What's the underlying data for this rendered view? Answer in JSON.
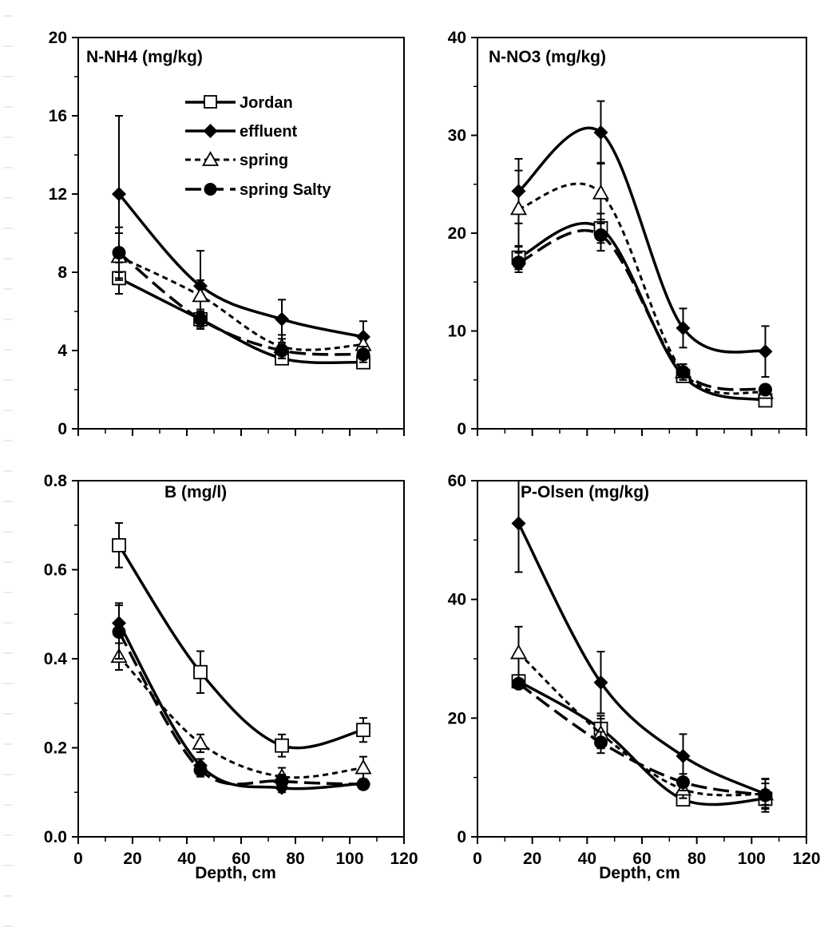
{
  "chart_data": [
    {
      "type": "line",
      "title": "N-NH4 (mg/kg)",
      "xlabel": "",
      "ylabel": "",
      "xlim": [
        0,
        120
      ],
      "ylim": [
        0,
        20
      ],
      "xticks": [],
      "yticks": [
        "0",
        "4",
        "8",
        "12",
        "16",
        "20"
      ],
      "legend": "top-left",
      "grid": false,
      "series": [
        {
          "name": "Jordan",
          "x": [
            15,
            45,
            75,
            105
          ],
          "values": [
            7.7,
            5.6,
            3.6,
            3.4
          ],
          "errors": [
            0.8,
            0.4,
            0.2,
            0.3
          ]
        },
        {
          "name": "effluent",
          "x": [
            15,
            45,
            75,
            105
          ],
          "values": [
            12.0,
            7.3,
            5.6,
            4.7
          ],
          "errors": [
            4.0,
            1.8,
            1.0,
            0.8
          ]
        },
        {
          "name": "spring",
          "x": [
            15,
            45,
            75,
            105
          ],
          "values": [
            8.8,
            6.8,
            4.2,
            4.3
          ],
          "errors": [
            1.2,
            0.8,
            0.6,
            0.5
          ]
        },
        {
          "name": "spring Salty",
          "x": [
            15,
            45,
            75,
            105
          ],
          "values": [
            9.0,
            5.6,
            4.0,
            3.8
          ],
          "errors": [
            1.3,
            0.5,
            0.4,
            0.4
          ]
        }
      ]
    },
    {
      "type": "line",
      "title": "N-NO3 (mg/kg)",
      "xlabel": "",
      "ylabel": "",
      "xlim": [
        0,
        120
      ],
      "ylim": [
        0,
        40
      ],
      "xticks": [],
      "yticks": [
        "0",
        "10",
        "20",
        "30",
        "40"
      ],
      "grid": false,
      "series": [
        {
          "name": "Jordan",
          "x": [
            15,
            45,
            75,
            105
          ],
          "values": [
            17.5,
            20.5,
            5.4,
            2.9
          ],
          "errors": [
            1.2,
            1.5,
            0.6,
            0.5
          ]
        },
        {
          "name": "effluent",
          "x": [
            15,
            45,
            75,
            105
          ],
          "values": [
            24.3,
            30.3,
            10.3,
            7.9
          ],
          "errors": [
            3.3,
            3.2,
            2.0,
            2.6
          ]
        },
        {
          "name": "spring",
          "x": [
            15,
            45,
            75,
            105
          ],
          "values": [
            22.5,
            24.1,
            5.8,
            3.7
          ],
          "errors": [
            3.9,
            3.1,
            0.8,
            0.5
          ]
        },
        {
          "name": "spring Salty",
          "x": [
            15,
            45,
            75,
            105
          ],
          "values": [
            17.0,
            19.8,
            5.8,
            4.0
          ],
          "errors": [
            1.0,
            1.6,
            0.8,
            0.5
          ]
        }
      ]
    },
    {
      "type": "line",
      "title": "B (mg/l)",
      "xlabel": "Depth, cm",
      "ylabel": "",
      "xlim": [
        0,
        120
      ],
      "ylim": [
        0,
        0.8
      ],
      "xticks": [
        "0",
        "20",
        "40",
        "60",
        "80",
        "100",
        "120"
      ],
      "yticks": [
        "0.0",
        "0.2",
        "0.4",
        "0.6",
        "0.8"
      ],
      "grid": false,
      "series": [
        {
          "name": "Jordan",
          "x": [
            15,
            45,
            75,
            105
          ],
          "values": [
            0.655,
            0.37,
            0.205,
            0.24
          ],
          "errors": [
            0.05,
            0.047,
            0.025,
            0.027
          ]
        },
        {
          "name": "effluent",
          "x": [
            15,
            45,
            75,
            105
          ],
          "values": [
            0.48,
            0.16,
            0.11,
            0.12
          ],
          "errors": [
            0.045,
            0.015,
            0.01,
            0.01
          ]
        },
        {
          "name": "spring",
          "x": [
            15,
            45,
            75,
            105
          ],
          "values": [
            0.405,
            0.21,
            0.135,
            0.155
          ],
          "errors": [
            0.03,
            0.02,
            0.02,
            0.025
          ]
        },
        {
          "name": "spring Salty",
          "x": [
            15,
            45,
            75,
            105
          ],
          "values": [
            0.46,
            0.15,
            0.125,
            0.118
          ],
          "errors": [
            0.06,
            0.015,
            0.015,
            0.01
          ]
        }
      ]
    },
    {
      "type": "line",
      "title": "P-Olsen (mg/kg)",
      "xlabel": "Depth, cm",
      "ylabel": "",
      "xlim": [
        0,
        120
      ],
      "ylim": [
        0,
        60
      ],
      "xticks": [
        "0",
        "20",
        "40",
        "60",
        "80",
        "100",
        "120"
      ],
      "yticks": [
        "0",
        "20",
        "40",
        "60"
      ],
      "grid": false,
      "series": [
        {
          "name": "Jordan",
          "x": [
            15,
            45,
            75,
            105
          ],
          "values": [
            26.2,
            18.2,
            6.3,
            6.4
          ],
          "errors": [
            1.0,
            2.2,
            0.8,
            1.5
          ]
        },
        {
          "name": "effluent",
          "x": [
            15,
            45,
            75,
            105
          ],
          "values": [
            52.8,
            26.0,
            13.6,
            7.2
          ],
          "errors": [
            8.2,
            5.2,
            3.7,
            2.5
          ]
        },
        {
          "name": "spring",
          "x": [
            15,
            45,
            75,
            105
          ],
          "values": [
            31.0,
            17.4,
            8.0,
            7.2
          ],
          "errors": [
            4.4,
            2.5,
            1.5,
            1.8
          ]
        },
        {
          "name": "spring Salty",
          "x": [
            15,
            45,
            75,
            105
          ],
          "values": [
            25.8,
            15.9,
            9.2,
            7.0
          ],
          "errors": [
            0.8,
            1.8,
            1.4,
            2.8
          ]
        }
      ]
    }
  ],
  "colors": {
    "ink": "#000000",
    "background": "#ffffff"
  }
}
